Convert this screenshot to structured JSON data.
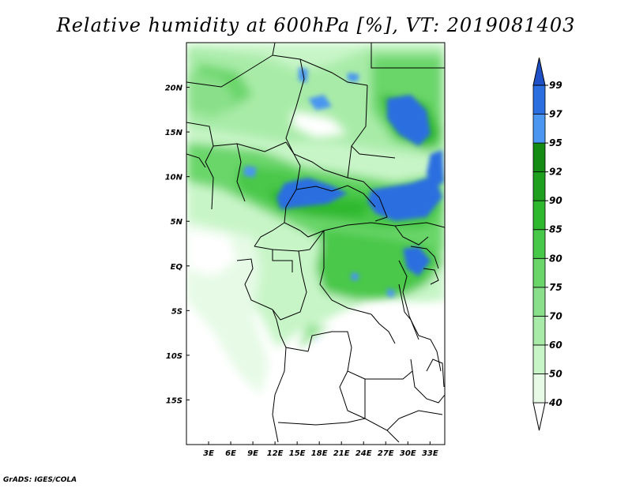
{
  "title": "Relative humidity at 600hPa [%], VT: 2019081403",
  "footer": "GrADS: IGES/COLA",
  "map": {
    "lon_range": [
      0,
      35
    ],
    "lat_range": [
      -20,
      25
    ],
    "lat_ticks": [
      {
        "value": 20,
        "label": "20N"
      },
      {
        "value": 15,
        "label": "15N"
      },
      {
        "value": 10,
        "label": "10N"
      },
      {
        "value": 5,
        "label": "5N"
      },
      {
        "value": 0,
        "label": "EQ"
      },
      {
        "value": -5,
        "label": "5S"
      },
      {
        "value": -10,
        "label": "10S"
      },
      {
        "value": -15,
        "label": "15S"
      }
    ],
    "lon_ticks": [
      {
        "value": 3,
        "label": "3E"
      },
      {
        "value": 6,
        "label": "6E"
      },
      {
        "value": 9,
        "label": "9E"
      },
      {
        "value": 12,
        "label": "12E"
      },
      {
        "value": 15,
        "label": "15E"
      },
      {
        "value": 18,
        "label": "18E"
      },
      {
        "value": 21,
        "label": "21E"
      },
      {
        "value": 24,
        "label": "24E"
      },
      {
        "value": 27,
        "label": "27E"
      },
      {
        "value": 30,
        "label": "30E"
      },
      {
        "value": 33,
        "label": "33E"
      }
    ]
  },
  "colorbar": {
    "levels": [
      "40",
      "50",
      "60",
      "70",
      "75",
      "80",
      "85",
      "90",
      "92",
      "95",
      "97",
      "99"
    ],
    "colors": [
      "#ffffff",
      "#e6fae6",
      "#c8f5c8",
      "#a8eba8",
      "#8ae08a",
      "#6ad66a",
      "#48c848",
      "#2eb82e",
      "#1ea01e",
      "#148c14",
      "#4a96f0",
      "#2a6ee0",
      "#1e50c8"
    ]
  }
}
